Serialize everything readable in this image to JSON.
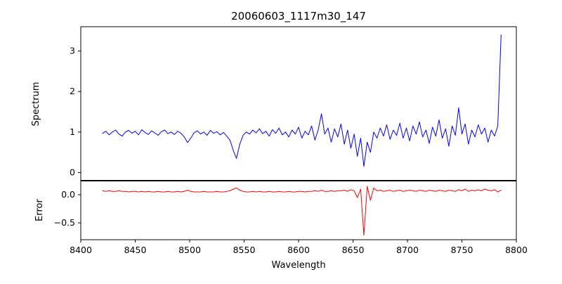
{
  "figure": {
    "title": "20060603_1117m30_147",
    "xlabel": "Wavelength",
    "background": "#ffffff"
  },
  "axes": {
    "xlim": [
      8400,
      8800
    ],
    "xticks": [
      8400,
      8450,
      8500,
      8550,
      8600,
      8650,
      8700,
      8750,
      8800
    ]
  },
  "chart_data": [
    {
      "type": "line",
      "name": "spectrum",
      "ylabel": "Spectrum",
      "color": "#0000ff",
      "legend": "none",
      "grid": false,
      "x_start": 8420,
      "x_step": 3,
      "ylim": [
        -0.2,
        3.6
      ],
      "yticks": [
        {
          "v": 0,
          "label": "0"
        },
        {
          "v": 1,
          "label": "1"
        },
        {
          "v": 2,
          "label": "2"
        },
        {
          "v": 3,
          "label": "3"
        }
      ],
      "values": [
        0.97,
        1.02,
        0.93,
        1.0,
        1.05,
        0.95,
        0.9,
        1.0,
        1.04,
        0.97,
        1.02,
        0.93,
        1.06,
        0.99,
        0.94,
        1.03,
        0.98,
        0.92,
        1.01,
        1.05,
        0.96,
        1.0,
        0.94,
        1.02,
        0.97,
        0.88,
        0.74,
        0.85,
        0.98,
        1.03,
        0.95,
        1.0,
        0.92,
        1.04,
        0.97,
        1.01,
        0.93,
        0.99,
        0.9,
        0.8,
        0.55,
        0.35,
        0.7,
        0.92,
        1.0,
        0.95,
        1.05,
        0.98,
        1.08,
        0.96,
        1.02,
        0.9,
        1.06,
        0.97,
        1.1,
        0.93,
        1.0,
        0.88,
        1.05,
        0.95,
        1.12,
        0.85,
        1.02,
        0.93,
        1.15,
        0.8,
        1.05,
        1.45,
        0.95,
        1.1,
        0.75,
        1.08,
        0.88,
        1.2,
        0.7,
        1.05,
        0.6,
        0.95,
        0.4,
        0.85,
        0.15,
        0.75,
        0.5,
        1.0,
        0.85,
        1.1,
        0.9,
        1.18,
        0.82,
        1.05,
        0.92,
        1.22,
        0.85,
        1.1,
        0.78,
        1.15,
        0.95,
        1.25,
        0.88,
        1.05,
        0.72,
        1.12,
        0.9,
        1.3,
        0.85,
        1.08,
        0.65,
        1.15,
        0.92,
        1.6,
        0.95,
        1.2,
        0.7,
        1.05,
        0.88,
        1.18,
        0.95,
        1.1,
        0.75,
        1.05,
        0.9,
        1.15,
        3.4
      ]
    },
    {
      "type": "line",
      "name": "error",
      "ylabel": "Error",
      "color": "#ff0000",
      "legend": "none",
      "grid": false,
      "x_start": 8420,
      "x_step": 3,
      "ylim": [
        -0.8,
        0.25
      ],
      "yticks": [
        {
          "v": 0,
          "label": "0.0"
        },
        {
          "v": -0.5,
          "label": "−0.5"
        }
      ],
      "values": [
        0.07,
        0.06,
        0.07,
        0.06,
        0.06,
        0.07,
        0.06,
        0.06,
        0.05,
        0.06,
        0.06,
        0.05,
        0.06,
        0.05,
        0.06,
        0.05,
        0.05,
        0.06,
        0.05,
        0.05,
        0.06,
        0.05,
        0.05,
        0.06,
        0.05,
        0.06,
        0.08,
        0.06,
        0.05,
        0.05,
        0.05,
        0.06,
        0.05,
        0.05,
        0.05,
        0.06,
        0.05,
        0.05,
        0.06,
        0.07,
        0.1,
        0.12,
        0.08,
        0.06,
        0.05,
        0.05,
        0.06,
        0.05,
        0.06,
        0.05,
        0.05,
        0.06,
        0.05,
        0.05,
        0.06,
        0.05,
        0.05,
        0.06,
        0.05,
        0.05,
        0.06,
        0.06,
        0.05,
        0.06,
        0.06,
        0.07,
        0.06,
        0.08,
        0.06,
        0.06,
        0.07,
        0.06,
        0.07,
        0.07,
        0.08,
        0.06,
        0.09,
        0.07,
        -0.05,
        0.1,
        -0.72,
        0.15,
        -0.1,
        0.12,
        0.07,
        0.08,
        0.06,
        0.07,
        0.08,
        0.06,
        0.07,
        0.08,
        0.06,
        0.07,
        0.08,
        0.07,
        0.06,
        0.08,
        0.07,
        0.06,
        0.08,
        0.07,
        0.06,
        0.08,
        0.07,
        0.06,
        0.08,
        0.07,
        0.06,
        0.09,
        0.07,
        0.1,
        0.06,
        0.08,
        0.07,
        0.09,
        0.07,
        0.1,
        0.08,
        0.07,
        0.09,
        0.05,
        0.08
      ]
    }
  ]
}
